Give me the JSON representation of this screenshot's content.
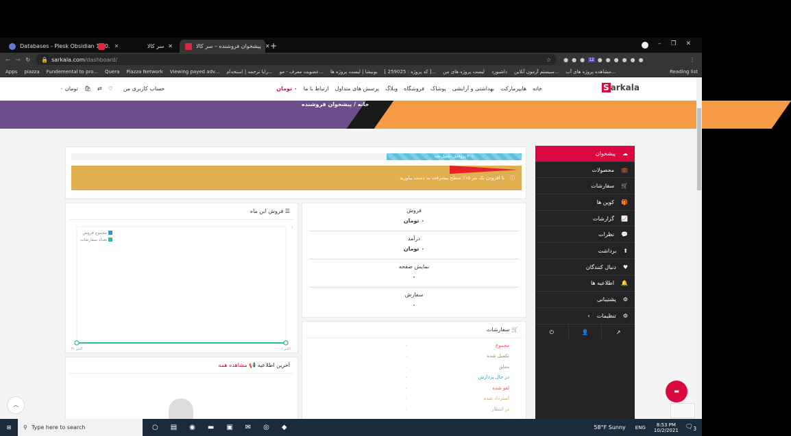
{
  "browser": {
    "tabs": [
      {
        "label": "Databases - Plesk Obsidian 18.0.",
        "active": false
      },
      {
        "label": "سر کالا",
        "active": false
      },
      {
        "label": "پیشخوان فروشنده – سر کالا",
        "active": true
      }
    ],
    "url_host": "sarkala.com",
    "url_path": "/dashboard/",
    "bookmarks": [
      "Apps",
      "piazza",
      "Fundemental to pro...",
      "Quera",
      "Piazza Network",
      "Viewing payed adv...",
      "رایا ترجمه | استخدام...",
      "عضویت معرف - مو...",
      "یونیشا | لیست پروژه ها",
      "[ کد پروژه : 259025 ]...",
      "لیست پروژه های من",
      "داشبورد",
      "سیستم آزمون آنلاین...",
      "مشاهده پروژه های آب..."
    ],
    "reading_list": "Reading list",
    "ext_badge": "12"
  },
  "site": {
    "logo": "arkala",
    "logo_initial": "S",
    "nav": [
      "خانه",
      "هایپرمارکت",
      "بهداشتی و آرایشی",
      "پوشاک",
      "فروشگاه",
      "وبلاگ",
      "پرسش های متداول",
      "ارتباط با ما"
    ],
    "cart_total": "۰ تومان",
    "account": "حساب کاربری من",
    "mini_total": "۰ تومان",
    "breadcrumb": {
      "home": "خانه",
      "sep": "/",
      "current": "پیشخوان فروشنده"
    },
    "accent": "#d9083f"
  },
  "progress": {
    "label": "۳۰٪ پروفایل تکمیل شد",
    "percent": 30
  },
  "alert": {
    "text": "با افزودن یک بنر ۱۵٪ سطح پیشرفت به دست بیاورید",
    "color": "#e0b050"
  },
  "stats": [
    {
      "label": "فروش",
      "value": "۰ تومان"
    },
    {
      "label": "درآمد",
      "value": "۰ تومان"
    },
    {
      "label": "نمایش صفحه",
      "value": "۰"
    },
    {
      "label": "سفارش",
      "value": "۰"
    }
  ],
  "orders": {
    "title": "سفارشات",
    "items": [
      {
        "label": "مجموع",
        "value": "۰",
        "color": "#e8505b"
      },
      {
        "label": "تکمیل شده",
        "value": "۰",
        "color": "#9c8a5a"
      },
      {
        "label": "معلق",
        "value": "۰",
        "color": "#999999"
      },
      {
        "label": "در حال پردازش",
        "value": "۰",
        "color": "#2a9fb0"
      },
      {
        "label": "لغو شده",
        "value": "۰",
        "color": "#e8505b"
      },
      {
        "label": "استرداد شده",
        "value": "۰",
        "color": "#e0a040"
      },
      {
        "label": "در انتظار",
        "value": "۰",
        "color": "#e0a040"
      }
    ]
  },
  "sales": {
    "title": "فروش این ماه"
  },
  "chart_data": {
    "type": "line",
    "categories": [
      "۱ اکتبر",
      "۳۱ اکتبر"
    ],
    "ylim": [
      0,
      1
    ],
    "y_ticks": [
      "۰",
      "۱"
    ],
    "series": [
      {
        "name": "مجموع فروش",
        "values": [
          0,
          0
        ],
        "color": "#3b8fd9"
      },
      {
        "name": "تعداد سفارشات",
        "values": [
          0,
          0
        ],
        "color": "#2fb9a0"
      }
    ],
    "legend": "top-left",
    "grid": false
  },
  "notices": {
    "title": "آخرین اطلاعیه",
    "see_all": "مشاهده همه"
  },
  "sidebar": {
    "items": [
      "پیشخوان",
      "محصولات",
      "سفارشات",
      "کوپن ها",
      "گزارشات",
      "نظرات",
      "برداشت",
      "دنبال کنندگان",
      "اطلاعیه ها",
      "پشتیبانی",
      "تنظیمات"
    ]
  },
  "taskbar": {
    "search": "Type here to search",
    "weather": "58°F  Sunny",
    "lang": "ENG",
    "time": "8:53 PM",
    "date": "10/2/2021",
    "notif": "3"
  }
}
